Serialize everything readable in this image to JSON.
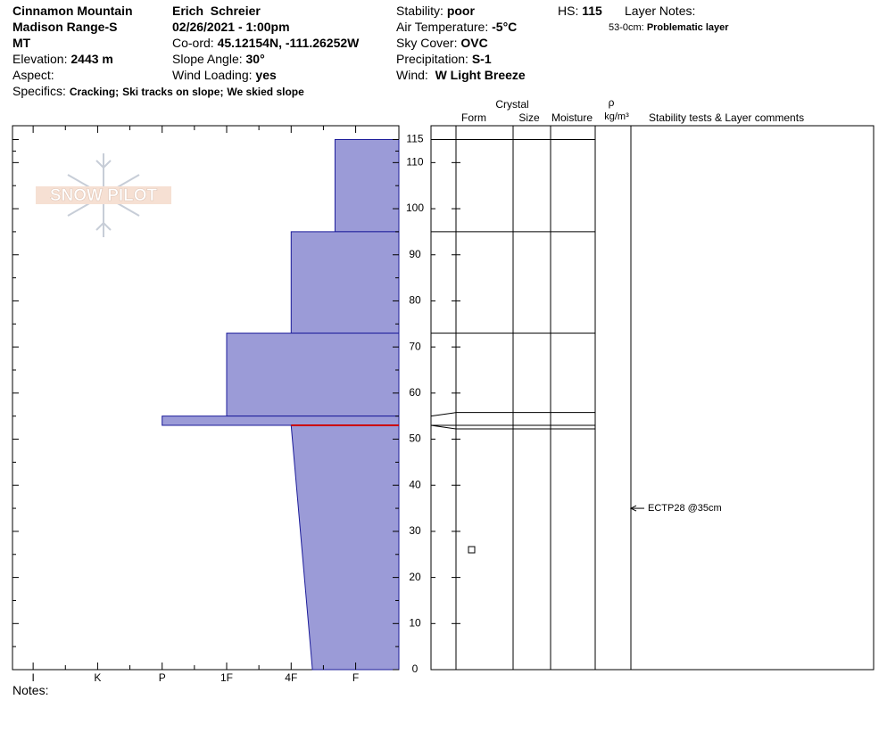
{
  "header": {
    "location": [
      "Cinnamon Mountain",
      "Madison Range-S",
      "MT"
    ],
    "elevation": {
      "label": "Elevation:",
      "value": "2443 m"
    },
    "aspect": {
      "label": "Aspect:"
    },
    "specifics": {
      "label": "Specifics:",
      "items": [
        "Cracking;",
        "Ski tracks on slope;",
        "We skied slope"
      ]
    },
    "observer": "Erich  Schreier",
    "datetime": "02/26/2021 - 1:00pm",
    "coord": {
      "label": "Co-ord:",
      "value": "45.12154N, -111.26252W"
    },
    "slope_angle": {
      "label": "Slope Angle:",
      "value": "30°"
    },
    "wind_loading": {
      "label": "Wind Loading:",
      "value": "yes"
    },
    "stability": {
      "label": "Stability:",
      "value": "poor"
    },
    "air_temperature": {
      "label": "Air Temperature:",
      "value": "-5°C"
    },
    "sky_cover": {
      "label": "Sky Cover:",
      "value": "OVC"
    },
    "precipitation": {
      "label": "Precipitation:",
      "value": "S-1"
    },
    "wind": {
      "label": "Wind:",
      "value": "W Light Breeze"
    },
    "hs": {
      "label": "HS:",
      "value": 115
    },
    "layer_notes": {
      "label": "Layer Notes:",
      "range": "53-0cm:",
      "note": "Problematic layer"
    },
    "notes": "Notes:"
  },
  "columns": {
    "crystal": "Crystal",
    "form": "Form",
    "size": "Size",
    "moisture": "Moisture",
    "rho": "ρ",
    "density_unit": "kg/m³",
    "comments": "Stability tests & Layer comments"
  },
  "logo": "SNOW PILOT",
  "chart_data": {
    "type": "profile",
    "ylim": [
      0,
      118
    ],
    "yticks": [
      0,
      10,
      20,
      30,
      40,
      50,
      60,
      70,
      80,
      90,
      100,
      110,
      115
    ],
    "xlim": [
      6.32,
      0.33
    ],
    "xticks": [
      {
        "value": 6,
        "label": "I"
      },
      {
        "value": 5,
        "label": "K"
      },
      {
        "value": 4,
        "label": "P"
      },
      {
        "value": 3,
        "label": "1F"
      },
      {
        "value": 2,
        "label": "4F"
      },
      {
        "value": 1,
        "label": "F"
      }
    ],
    "fill": "#9b9bd7",
    "edge": "#1c1c9a",
    "layers": [
      {
        "top": 115,
        "bottom": 95,
        "hardness": [
          1.32,
          1.32
        ]
      },
      {
        "top": 95,
        "bottom": 73,
        "hardness": [
          2,
          2
        ]
      },
      {
        "top": 73,
        "bottom": 55,
        "hardness": [
          3,
          3
        ]
      },
      {
        "top": 55,
        "bottom": 53,
        "hardness": [
          4,
          4
        ]
      },
      {
        "top": 53,
        "bottom": 0,
        "hardness": [
          2,
          1.67
        ]
      }
    ],
    "problematic_layer": {
      "depth": 53,
      "color": "#cc0000"
    },
    "tests": [
      {
        "depth": 35,
        "label": "ECTP28 @35cm"
      }
    ]
  }
}
